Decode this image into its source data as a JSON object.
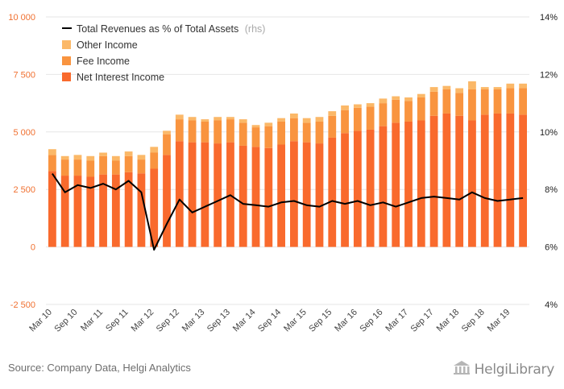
{
  "footer": {
    "source": "Source: Company Data, Helgi Analytics",
    "brand": "HelgiLibrary"
  },
  "colors": {
    "net_interest_income": "#f96a2d",
    "fee_income": "#f9943f",
    "other_income": "#fbb868",
    "ratio_line": "#000000",
    "left_tick_labels": "#f07030",
    "grid": "#e6e6e6",
    "muted": "#aaaaaa"
  },
  "chart_data": {
    "type": "bar",
    "stacked": true,
    "categories": [
      "Mar 10",
      "Jun 10",
      "Sep 10",
      "Dec 10",
      "Mar 11",
      "Jun 11",
      "Sep 11",
      "Dec 11",
      "Mar 12",
      "Jun 12",
      "Sep 12",
      "Dec 12",
      "Mar 13",
      "Jun 13",
      "Sep 13",
      "Dec 13",
      "Mar 14",
      "Jun 14",
      "Sep 14",
      "Dec 14",
      "Mar 15",
      "Jun 15",
      "Sep 15",
      "Dec 15",
      "Mar 16",
      "Jun 16",
      "Sep 16",
      "Dec 16",
      "Mar 17",
      "Jun 17",
      "Sep 17",
      "Dec 17",
      "Mar 18",
      "Jun 18",
      "Sep 18",
      "Dec 18",
      "Mar 19",
      "Jun 19"
    ],
    "x_tick_labels": [
      "Mar 10",
      "Sep 10",
      "Mar 11",
      "Sep 11",
      "Mar 12",
      "Sep 12",
      "Mar 13",
      "Sep 13",
      "Mar 14",
      "Sep 14",
      "Mar 15",
      "Sep 15",
      "Mar 16",
      "Sep 16",
      "Mar 17",
      "Sep 17",
      "Mar 18",
      "Sep 18",
      "Mar 19"
    ],
    "series": [
      {
        "name": "Net Interest Income",
        "axis": "left",
        "values": [
          3300,
          3100,
          3100,
          3050,
          3150,
          3150,
          3250,
          3200,
          3400,
          4000,
          4600,
          4550,
          4550,
          4500,
          4550,
          4400,
          4350,
          4300,
          4450,
          4600,
          4550,
          4500,
          4750,
          4950,
          5050,
          5100,
          5250,
          5400,
          5450,
          5500,
          5700,
          5800,
          5700,
          5500,
          5750,
          5800,
          5800,
          5750
        ]
      },
      {
        "name": "Fee Income",
        "axis": "left",
        "values": [
          700,
          700,
          700,
          700,
          800,
          600,
          700,
          600,
          700,
          900,
          950,
          950,
          900,
          1000,
          1000,
          1000,
          850,
          950,
          1000,
          1000,
          850,
          950,
          950,
          1000,
          1000,
          1000,
          1000,
          1000,
          900,
          1000,
          1050,
          1050,
          1000,
          1350,
          1100,
          1050,
          1100,
          1150
        ]
      },
      {
        "name": "Other Income",
        "axis": "left",
        "values": [
          250,
          150,
          200,
          200,
          150,
          200,
          200,
          200,
          250,
          150,
          200,
          150,
          100,
          150,
          100,
          150,
          100,
          150,
          150,
          200,
          200,
          200,
          200,
          200,
          150,
          150,
          200,
          150,
          150,
          150,
          200,
          150,
          200,
          350,
          100,
          100,
          200,
          200
        ]
      },
      {
        "name": "Total Revenues as % of Total Assets",
        "axis": "right",
        "type": "line",
        "values": [
          8.55,
          7.9,
          8.15,
          8.05,
          8.2,
          8.0,
          8.3,
          7.9,
          5.9,
          6.8,
          7.65,
          7.2,
          7.4,
          7.6,
          7.8,
          7.5,
          7.45,
          7.4,
          7.55,
          7.6,
          7.45,
          7.4,
          7.6,
          7.5,
          7.6,
          7.45,
          7.55,
          7.4,
          7.55,
          7.7,
          7.75,
          7.7,
          7.65,
          7.9,
          7.7,
          7.6,
          7.65,
          7.7
        ]
      }
    ],
    "legend": {
      "placement": "top-left",
      "rhs_suffix": "(rhs)"
    },
    "left_axis": {
      "ylim": [
        -2500,
        10000
      ],
      "ticks": [
        -2500,
        0,
        2500,
        5000,
        7500,
        10000
      ],
      "tick_labels": [
        "-2 500",
        "0",
        "2 500",
        "5 000",
        "7 500",
        "10 000"
      ]
    },
    "right_axis": {
      "ylim": [
        4,
        14
      ],
      "ticks": [
        4,
        6,
        8,
        10,
        12,
        14
      ],
      "tick_labels": [
        "4%",
        "6%",
        "8%",
        "10%",
        "12%",
        "14%"
      ]
    },
    "grid": true
  }
}
